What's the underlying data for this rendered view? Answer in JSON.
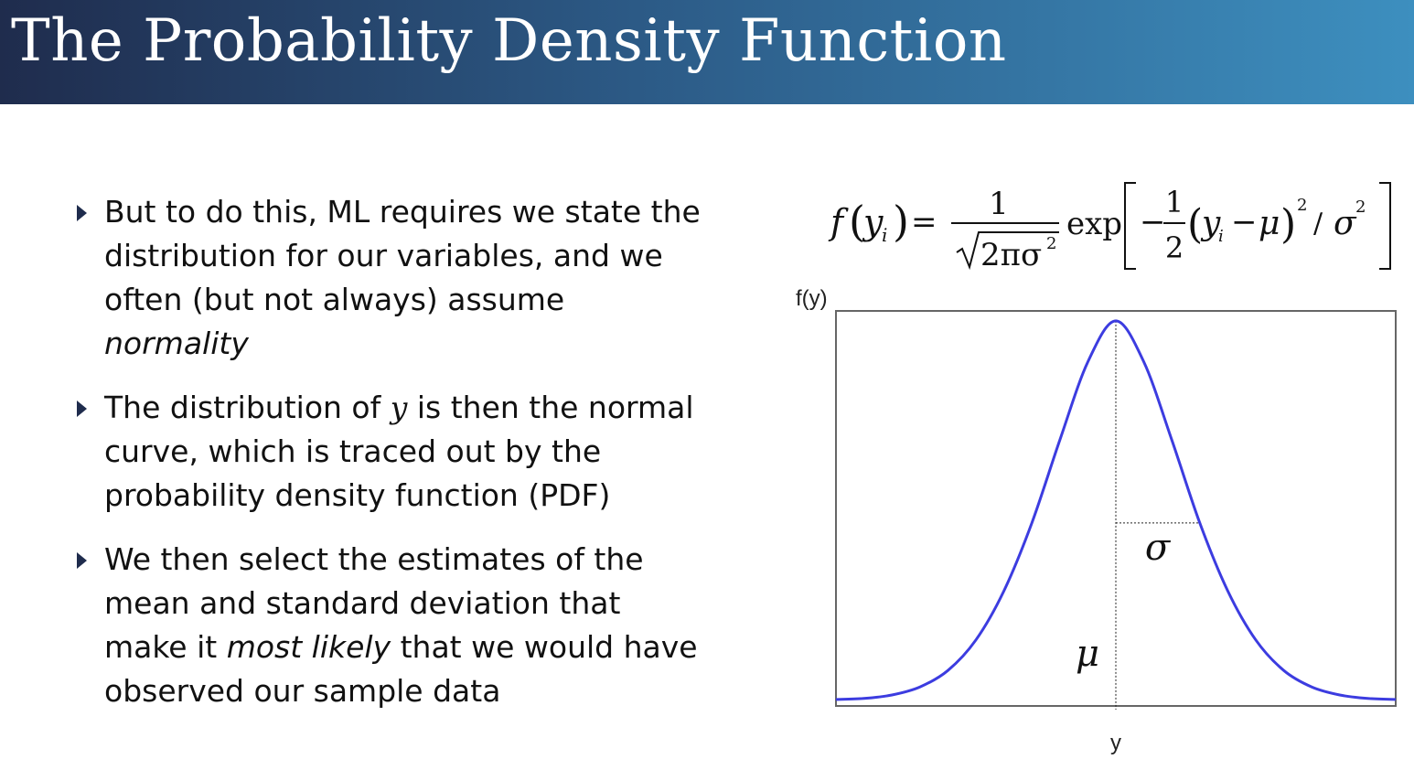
{
  "slide": {
    "title": "The Probability Density Function"
  },
  "bullets": [
    {
      "parts": [
        {
          "text": "But to do this, ML requires we state the distribution for our variables, and we often (but not always) assume "
        },
        {
          "text": "normality",
          "style": "italic"
        }
      ]
    },
    {
      "parts": [
        {
          "text": "The distribution of "
        },
        {
          "text": "y",
          "style": "mathvar"
        },
        {
          "text": " is then the normal curve, which is traced out by the probability density function (PDF)"
        }
      ]
    },
    {
      "parts": [
        {
          "text": "We then select the estimates of the mean and standard deviation that make it "
        },
        {
          "text": "most likely",
          "style": "italic"
        },
        {
          "text": " that we would have observed our sample data"
        }
      ]
    }
  ],
  "formula": {
    "lhs_f": "f",
    "lhs_y": "y",
    "lhs_sub": "i",
    "eq": "=",
    "numerator": "1",
    "denominator": "2πσ",
    "denominator_exp": "2",
    "exp": "exp",
    "minus": "−",
    "half_num": "1",
    "half_den": "2",
    "inner_y": "y",
    "inner_sub": "i",
    "inner_minus": "−",
    "mu": "μ",
    "sq": "2",
    "slash": "/",
    "sigma": "σ",
    "sigma_exp": "2"
  },
  "chart_data": {
    "type": "line",
    "ylabel": "f(y)",
    "xlabel": "y",
    "series": [
      {
        "points": [
          [
            -4.0,
            0.013
          ],
          [
            -3.6,
            0.015
          ],
          [
            -3.2,
            0.022
          ],
          [
            -2.8,
            0.038
          ],
          [
            -2.4,
            0.071
          ],
          [
            -2.0,
            0.132
          ],
          [
            -1.6,
            0.23
          ],
          [
            -1.2,
            0.366
          ],
          [
            -0.8,
            0.532
          ],
          [
            -0.4,
            0.688
          ],
          [
            0.0,
            0.77
          ],
          [
            0.4,
            0.688
          ],
          [
            0.8,
            0.532
          ],
          [
            1.2,
            0.366
          ],
          [
            1.6,
            0.23
          ],
          [
            2.0,
            0.132
          ],
          [
            2.4,
            0.071
          ],
          [
            2.8,
            0.038
          ],
          [
            3.2,
            0.022
          ],
          [
            3.6,
            0.015
          ],
          [
            4.0,
            0.013
          ]
        ]
      }
    ],
    "xlim": [
      -4.0,
      4.0
    ],
    "ylim": [
      0.0,
      0.79
    ],
    "annotations": {
      "mean_symbol": "μ",
      "sd_symbol": "σ",
      "sd_offset": 1.2
    },
    "colors": {
      "curve": "#3c3ce0",
      "frame": "#666666",
      "guide": "#222222"
    },
    "grid": false
  }
}
